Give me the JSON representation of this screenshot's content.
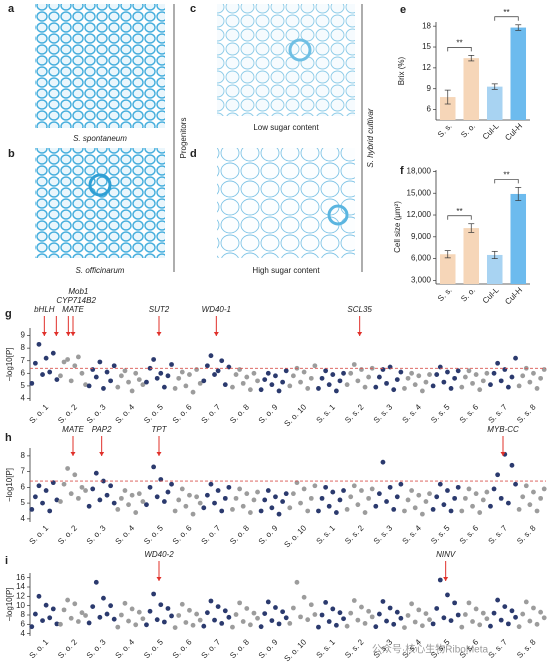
{
  "micrographs": [
    {
      "panel": "a",
      "caption": "S. spontaneum"
    },
    {
      "panel": "b",
      "caption": "S. officinarum"
    },
    {
      "panel": "c",
      "caption": "Low sugar content"
    },
    {
      "panel": "d",
      "caption": "High sugar content"
    }
  ],
  "side_labels": [
    "Progenitors",
    "S. hybrid cultivar"
  ],
  "watermark": "公众号·核心生物RiboMeta",
  "chart_data": [
    {
      "type": "bar",
      "panel": "e",
      "ylabel": "Brix (%)",
      "categories": [
        "S. s.",
        "S. o.",
        "Cul-L",
        "Cul-H"
      ],
      "values": [
        7.8,
        13.4,
        9.3,
        17.8
      ],
      "errors": [
        1.0,
        0.4,
        0.4,
        0.4
      ],
      "colors": [
        "#f6d6b8",
        "#f6d6b8",
        "#a8d3f2",
        "#6dbbee"
      ],
      "ylim": [
        4.5,
        18.6
      ],
      "yticks": [
        6,
        9,
        12,
        15,
        18
      ],
      "annotations": [
        {
          "text": "**",
          "from": "S. s.",
          "to": "S. o."
        },
        {
          "text": "**",
          "from": "Cul-L",
          "to": "Cul-H"
        }
      ]
    },
    {
      "type": "bar",
      "panel": "f",
      "ylabel": "Cell size (μm²)",
      "categories": [
        "S. s.",
        "S. o.",
        "Cul-L",
        "Cul-H"
      ],
      "values": [
        6600,
        10200,
        6500,
        14900
      ],
      "errors": [
        500,
        600,
        500,
        900
      ],
      "colors": [
        "#f6d6b8",
        "#f6d6b8",
        "#a8d3f2",
        "#6dbbee"
      ],
      "ylim": [
        2500,
        18200
      ],
      "yticks": [
        {
          "value": 3000,
          "label": "3,000"
        },
        {
          "value": 6000,
          "label": "6,000"
        },
        {
          "value": 9000,
          "label": "9,000"
        },
        {
          "value": 12000,
          "label": "12,000"
        },
        {
          "value": 15000,
          "label": "15,000"
        },
        {
          "value": 18000,
          "label": "18,000"
        }
      ],
      "annotations": [
        {
          "text": "**",
          "from": "S. s.",
          "to": "S. o."
        },
        {
          "text": "**",
          "from": "Cul-L",
          "to": "Cul-H"
        }
      ]
    },
    {
      "type": "manhattan",
      "panel": "g",
      "ylabel": "−log10[P]",
      "colors": [
        "#2b3a6e",
        "#9c9c9c"
      ],
      "categories": [
        "S. o. 1",
        "S. o. 2",
        "S. o. 3",
        "S. o. 4",
        "S. o. 5",
        "S. o. 6",
        "S. o. 7",
        "S. o. 8",
        "S. o. 9",
        "S. o. 10",
        "S. s. 1",
        "S. s. 2",
        "S. s. 3",
        "S. s. 4",
        "S. s. 5",
        "S. s. 6",
        "S. s. 7",
        "S. s. 8"
      ],
      "values": [
        [
          5.2,
          6.8,
          8.3,
          5.9,
          7.2,
          6.1,
          7.6,
          5.5
        ],
        [
          5.8,
          6.9,
          7.1,
          5.4,
          6.6,
          7.3,
          6.0,
          5.1
        ],
        [
          5.0,
          6.3,
          5.7,
          6.9,
          4.8,
          6.1,
          5.4,
          6.6
        ],
        [
          4.9,
          5.8,
          6.2,
          5.3,
          4.6,
          6.0,
          5.5,
          5.1
        ],
        [
          5.3,
          6.4,
          7.1,
          5.6,
          6.0,
          4.9,
          5.8,
          6.7
        ],
        [
          4.8,
          5.6,
          6.1,
          5.0,
          5.9,
          4.5,
          6.3,
          5.2
        ],
        [
          5.4,
          6.6,
          7.4,
          5.9,
          6.2,
          7.0,
          5.1,
          6.5
        ],
        [
          4.9,
          5.9,
          6.3,
          5.2,
          5.7,
          4.7,
          6.0,
          5.4
        ],
        [
          4.7,
          5.5,
          6.0,
          5.1,
          5.8,
          4.6,
          5.3,
          6.2
        ],
        [
          5.0,
          5.8,
          6.4,
          5.3,
          6.1,
          4.8,
          5.6,
          6.6
        ],
        [
          4.8,
          5.6,
          6.2,
          5.1,
          5.9,
          4.6,
          5.4,
          6.0
        ],
        [
          5.1,
          6.0,
          6.7,
          5.4,
          6.3,
          4.9,
          5.7,
          6.4
        ],
        [
          4.9,
          5.7,
          6.3,
          5.2,
          6.5,
          4.7,
          5.5,
          6.1
        ],
        [
          4.8,
          5.6,
          6.0,
          5.1,
          5.8,
          4.6,
          5.3,
          5.9
        ],
        [
          5.0,
          5.9,
          6.5,
          5.3,
          6.1,
          4.8,
          5.6,
          6.2
        ],
        [
          4.9,
          5.7,
          6.2,
          5.2,
          5.9,
          4.7,
          5.4,
          6.0
        ],
        [
          5.1,
          6.0,
          6.8,
          5.4,
          6.3,
          4.9,
          5.7,
          7.2
        ],
        [
          5.0,
          5.8,
          6.4,
          5.3,
          6.0,
          4.8,
          5.6,
          6.3
        ]
      ],
      "ylim": [
        3.8,
        9.6
      ],
      "yticks": [
        4,
        5,
        6,
        7,
        8,
        9
      ],
      "threshold": 6.4,
      "annotations": [
        {
          "text": "bHLH",
          "category": "S. o. 1"
        },
        {
          "text": "CYP714B2",
          "category": "S. o. 1"
        },
        {
          "text": "Mob1",
          "category": "S. o. 1"
        },
        {
          "text": "MATE",
          "category": "S. o. 2"
        },
        {
          "text": "SUT2",
          "category": "S. o. 5"
        },
        {
          "text": "WD40-1",
          "category": "S. o. 7"
        },
        {
          "text": "SCL35",
          "category": "S. s. 2"
        }
      ]
    },
    {
      "type": "manhattan",
      "panel": "h",
      "ylabel": "−log10[P]",
      "colors": [
        "#2b3a6e",
        "#9c9c9c"
      ],
      "categories": [
        "S. o. 1",
        "S. o. 2",
        "S. o. 3",
        "S. o. 4",
        "S. o. 5",
        "S. o. 6",
        "S. o. 7",
        "S. o. 8",
        "S. o. 9",
        "S. o. 10",
        "S. s. 1",
        "S. s. 2",
        "S. s. 3",
        "S. s. 4",
        "S. s. 5",
        "S. s. 6",
        "S. s. 7",
        "S. s. 8"
      ],
      "values": [
        [
          4.6,
          5.4,
          6.1,
          5.0,
          5.8,
          4.5,
          6.3,
          5.2
        ],
        [
          5.1,
          6.2,
          7.2,
          5.6,
          6.8,
          5.3,
          6.0,
          5.8
        ],
        [
          4.8,
          5.9,
          6.9,
          5.2,
          6.4,
          5.5,
          6.1,
          5.0
        ],
        [
          4.6,
          5.3,
          5.8,
          4.9,
          5.5,
          4.4,
          5.6,
          5.1
        ],
        [
          4.9,
          6.0,
          7.3,
          5.4,
          6.5,
          5.1,
          5.7,
          6.2
        ],
        [
          4.5,
          5.2,
          5.9,
          4.8,
          5.5,
          4.3,
          5.4,
          5.0
        ],
        [
          4.7,
          5.5,
          6.2,
          5.0,
          5.8,
          4.5,
          5.3,
          6.0
        ],
        [
          4.6,
          5.3,
          5.9,
          4.8,
          5.6,
          4.4,
          5.2,
          5.7
        ],
        [
          4.5,
          5.2,
          5.8,
          4.7,
          5.4,
          4.3,
          5.1,
          5.6
        ],
        [
          4.7,
          5.6,
          6.3,
          5.0,
          5.9,
          4.5,
          5.3,
          6.1
        ],
        [
          4.5,
          5.3,
          6.0,
          4.8,
          5.7,
          4.4,
          5.2,
          5.8
        ],
        [
          4.6,
          5.4,
          6.1,
          4.9,
          5.8,
          4.4,
          5.3,
          5.9
        ],
        [
          4.8,
          5.6,
          7.6,
          5.1,
          6.0,
          4.6,
          5.4,
          6.2
        ],
        [
          4.5,
          5.2,
          5.8,
          4.7,
          5.5,
          4.3,
          5.1,
          5.6
        ],
        [
          4.6,
          5.4,
          6.2,
          4.9,
          5.8,
          4.5,
          5.3,
          6.0
        ],
        [
          4.5,
          5.3,
          5.9,
          4.8,
          5.6,
          4.4,
          5.2,
          5.7
        ],
        [
          4.8,
          5.9,
          6.8,
          5.3,
          8.1,
          5.0,
          7.4,
          6.2
        ],
        [
          4.6,
          5.4,
          6.1,
          4.9,
          5.7,
          4.5,
          5.3,
          5.9
        ]
      ],
      "ylim": [
        3.8,
        8.5
      ],
      "yticks": [
        4,
        5,
        6,
        7,
        8
      ],
      "threshold": 6.4,
      "annotations": [
        {
          "text": "MATE",
          "category": "S. o. 2"
        },
        {
          "text": "PAP2",
          "category": "S. o. 3"
        },
        {
          "text": "TPT",
          "category": "S. o. 5"
        },
        {
          "text": "MYB-CC",
          "category": "S. s. 7"
        }
      ]
    },
    {
      "type": "manhattan",
      "panel": "i",
      "ylabel": "−log10[P]",
      "colors": [
        "#2b3a6e",
        "#9c9c9c"
      ],
      "categories": [
        "S. o. 1",
        "S. o. 2",
        "S. o. 3",
        "S. o. 4",
        "S. o. 5",
        "S. o. 6",
        "S. o. 7",
        "S. o. 8",
        "S. o. 9",
        "S. o. 10",
        "S. s. 1",
        "S. s. 2",
        "S. s. 3",
        "S. s. 4",
        "S. s. 5",
        "S. s. 6",
        "S. s. 7",
        "S. s. 8"
      ],
      "values": [
        [
          5.5,
          8.2,
          12.0,
          6.8,
          10.1,
          7.4,
          9.3,
          6.1
        ],
        [
          6.0,
          9.1,
          11.2,
          7.3,
          10.4,
          6.6,
          8.5,
          7.9
        ],
        [
          6.3,
          9.8,
          15.0,
          7.5,
          11.6,
          8.2,
          10.0,
          7.1
        ],
        [
          5.4,
          8.0,
          10.5,
          6.7,
          9.3,
          5.9,
          8.6,
          7.2
        ],
        [
          5.9,
          8.8,
          12.5,
          7.0,
          10.2,
          6.5,
          9.4,
          7.8
        ],
        [
          5.3,
          7.9,
          10.3,
          6.4,
          9.0,
          5.8,
          8.2,
          6.9
        ],
        [
          5.6,
          8.5,
          11.0,
          6.9,
          9.8,
          6.2,
          8.9,
          7.5
        ],
        [
          5.4,
          8.1,
          10.6,
          6.6,
          9.4,
          5.9,
          8.4,
          7.3
        ],
        [
          5.5,
          8.3,
          10.8,
          6.8,
          9.6,
          6.1,
          8.7,
          7.4
        ],
        [
          6.2,
          9.5,
          15.0,
          7.6,
          11.8,
          7.0,
          10.2,
          8.1
        ],
        [
          5.4,
          8.0,
          10.7,
          6.6,
          9.3,
          5.8,
          8.5,
          7.2
        ],
        [
          5.6,
          8.4,
          11.1,
          6.9,
          9.7,
          6.2,
          8.8,
          7.6
        ],
        [
          5.5,
          8.2,
          10.9,
          6.7,
          9.5,
          6.0,
          8.6,
          7.3
        ],
        [
          5.3,
          7.9,
          10.4,
          6.5,
          9.1,
          5.7,
          8.3,
          7.0
        ],
        [
          6.1,
          9.4,
          15.5,
          7.4,
          12.3,
          6.8,
          10.6,
          8.0
        ],
        [
          5.4,
          8.1,
          10.6,
          6.6,
          9.3,
          5.9,
          8.4,
          7.2
        ],
        [
          5.6,
          8.4,
          11.2,
          6.9,
          9.8,
          6.1,
          8.9,
          7.5
        ],
        [
          5.5,
          8.2,
          10.8,
          6.7,
          9.5,
          6.0,
          8.6,
          7.4
        ]
      ],
      "ylim": [
        3.5,
        17
      ],
      "yticks": [
        4,
        6,
        8,
        10,
        12,
        14,
        16
      ],
      "annotations": [
        {
          "text": "WD40-2",
          "category": "S. o. 5"
        },
        {
          "text": "NINV",
          "category": "S. s. 5"
        }
      ]
    }
  ]
}
